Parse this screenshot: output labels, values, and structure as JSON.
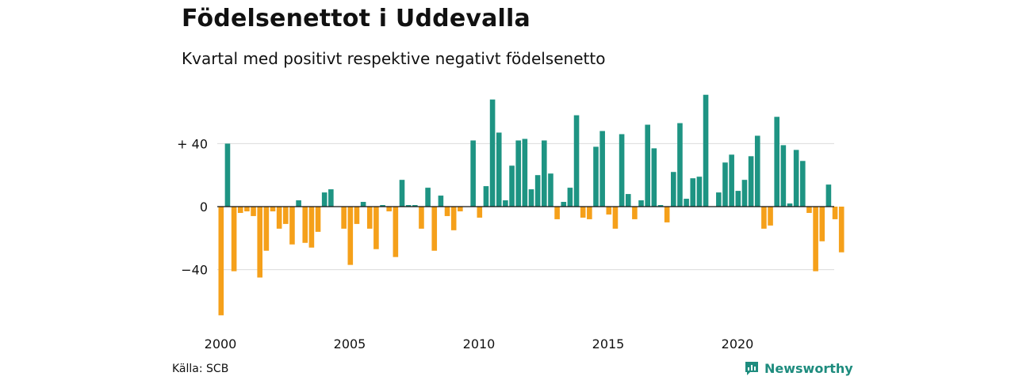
{
  "title": "Födelsenettot i Uddevalla",
  "subtitle": "Kvartal med positivt respektive negativt födelsenetto",
  "source": "Källa: SCB",
  "brand": "Newsworthy",
  "colors": {
    "positive": "#1e9483",
    "negative": "#f5a01a",
    "grid": "#dcdcdc",
    "brand": "#1e8c7e"
  },
  "chart_data": {
    "type": "bar",
    "title": "Födelsenettot i Uddevalla",
    "xlabel": "",
    "ylabel": "",
    "ylim": [
      -70,
      72
    ],
    "yticks": [
      {
        "value": 40,
        "label": "+ 40"
      },
      {
        "value": 0,
        "label": "0"
      },
      {
        "value": -40,
        "label": "−40"
      }
    ],
    "xticks": [
      "2000",
      "2005",
      "2010",
      "2015",
      "2020"
    ],
    "grid": true,
    "categories": [
      "2000Q1",
      "2000Q2",
      "2000Q3",
      "2000Q4",
      "2001Q1",
      "2001Q2",
      "2001Q3",
      "2001Q4",
      "2002Q1",
      "2002Q2",
      "2002Q3",
      "2002Q4",
      "2003Q1",
      "2003Q2",
      "2003Q3",
      "2003Q4",
      "2004Q1",
      "2004Q2",
      "2004Q3",
      "2004Q4",
      "2005Q1",
      "2005Q2",
      "2005Q3",
      "2005Q4",
      "2006Q1",
      "2006Q2",
      "2006Q3",
      "2006Q4",
      "2007Q1",
      "2007Q2",
      "2007Q3",
      "2007Q4",
      "2008Q1",
      "2008Q2",
      "2008Q3",
      "2008Q4",
      "2009Q1",
      "2009Q2",
      "2009Q3",
      "2009Q4",
      "2010Q1",
      "2010Q2",
      "2010Q3",
      "2010Q4",
      "2011Q1",
      "2011Q2",
      "2011Q3",
      "2011Q4",
      "2012Q1",
      "2012Q2",
      "2012Q3",
      "2012Q4",
      "2013Q1",
      "2013Q2",
      "2013Q3",
      "2013Q4",
      "2014Q1",
      "2014Q2",
      "2014Q3",
      "2014Q4",
      "2015Q1",
      "2015Q2",
      "2015Q3",
      "2015Q4",
      "2016Q1",
      "2016Q2",
      "2016Q3",
      "2016Q4",
      "2017Q1",
      "2017Q2",
      "2017Q3",
      "2017Q4",
      "2018Q1",
      "2018Q2",
      "2018Q3",
      "2018Q4",
      "2019Q1",
      "2019Q2",
      "2019Q3",
      "2019Q4",
      "2020Q1",
      "2020Q2",
      "2020Q3",
      "2020Q4",
      "2021Q1",
      "2021Q2",
      "2021Q3",
      "2021Q4",
      "2022Q1",
      "2022Q2",
      "2022Q3",
      "2022Q4",
      "2023Q1",
      "2023Q2",
      "2023Q3",
      "2023Q4",
      "2024Q1",
      "2024Q2",
      "2024Q3",
      "2024Q4"
    ],
    "values": [
      -69,
      40,
      -41,
      -4,
      -3,
      -6,
      -45,
      -28,
      -3,
      -14,
      -11,
      -24,
      4,
      -23,
      -26,
      -16,
      9,
      11,
      0,
      -14,
      -37,
      -11,
      3,
      -14,
      -27,
      1,
      -3,
      -32,
      17,
      1,
      1,
      -14,
      12,
      -28,
      7,
      -6,
      -15,
      -3,
      0,
      42,
      -7,
      13,
      68,
      47,
      4,
      26,
      42,
      43,
      11,
      20,
      42,
      21,
      -8,
      3,
      12,
      58,
      -7,
      -8,
      38,
      48,
      -5,
      -14,
      46,
      8,
      -8,
      4,
      52,
      37,
      1,
      -10,
      22,
      53,
      5,
      18,
      19,
      71,
      0,
      9,
      28,
      33,
      10,
      17,
      32,
      45,
      -14,
      -12,
      57,
      39,
      2,
      36,
      29,
      -4,
      -41,
      -22,
      14,
      -8,
      -29,
      0,
      0,
      0
    ]
  }
}
